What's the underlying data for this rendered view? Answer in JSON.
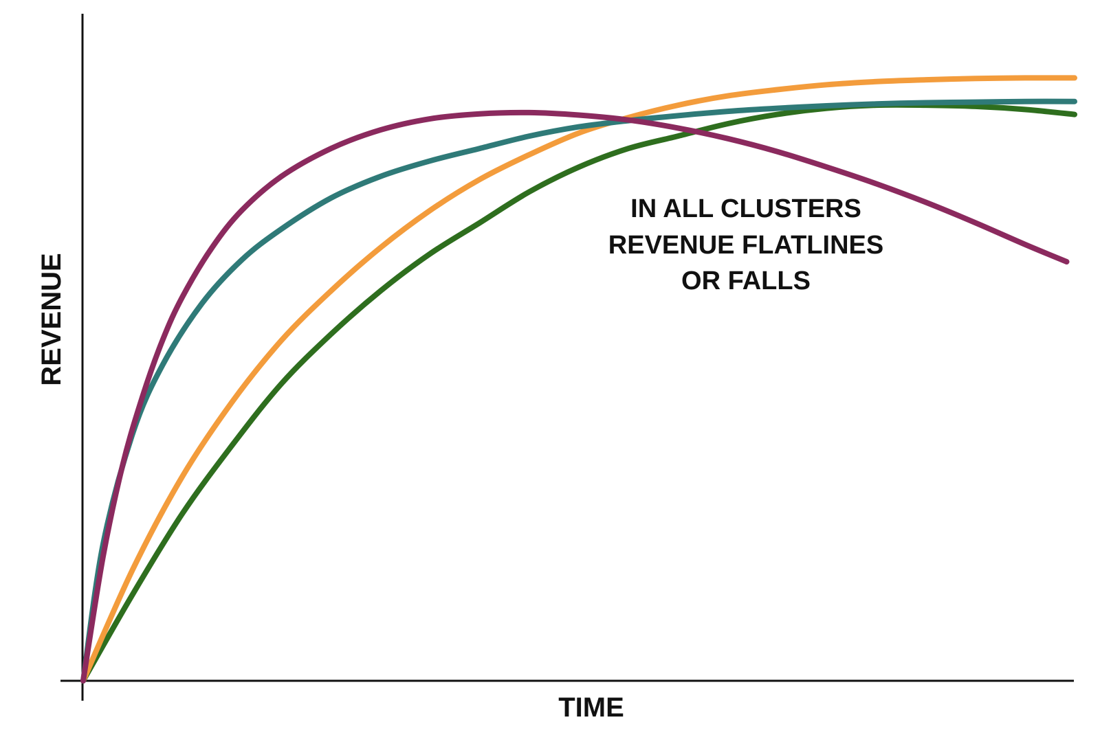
{
  "chart_data": {
    "type": "line",
    "title": "",
    "xlabel": "TIME",
    "ylabel": "REVENUE",
    "grid": false,
    "legend": "none",
    "annotation": [
      "IN ALL CLUSTERS",
      "REVENUE FLATLINES",
      "OR FALLS"
    ],
    "xlim": [
      0,
      100
    ],
    "ylim": [
      0,
      100
    ],
    "series": [
      {
        "color": "#2e6e1e",
        "x": [
          0,
          5,
          10,
          15,
          20,
          25,
          30,
          35,
          40,
          45,
          50,
          55,
          60,
          65,
          70,
          75,
          80,
          85,
          90,
          95,
          100
        ],
        "y": [
          0,
          14,
          27,
          38,
          48,
          56,
          63,
          69,
          74,
          79,
          83,
          86,
          88,
          90,
          91.5,
          92.5,
          93,
          93,
          92.8,
          92.3,
          91.5
        ]
      },
      {
        "color": "#f39c3c",
        "x": [
          0,
          5,
          10,
          15,
          20,
          25,
          30,
          35,
          40,
          45,
          50,
          55,
          60,
          65,
          70,
          75,
          80,
          85,
          90,
          95,
          100
        ],
        "y": [
          0,
          18,
          33,
          45,
          55,
          63,
          70,
          76,
          81,
          85,
          88.5,
          91,
          93,
          94.5,
          95.5,
          96.3,
          96.8,
          97.1,
          97.3,
          97.4,
          97.4
        ]
      },
      {
        "color": "#2f7a78",
        "x": [
          0,
          2,
          5,
          8,
          12,
          16,
          20,
          25,
          30,
          35,
          40,
          45,
          50,
          55,
          60,
          65,
          70,
          75,
          80,
          85,
          90,
          95,
          100
        ],
        "y": [
          0,
          22,
          40,
          51,
          61,
          68,
          73,
          78,
          81.5,
          84,
          86,
          88,
          89.5,
          90.5,
          91.3,
          92,
          92.5,
          92.9,
          93.2,
          93.4,
          93.5,
          93.6,
          93.6
        ]
      },
      {
        "color": "#8b2a5e",
        "x": [
          0,
          2,
          4,
          6,
          8,
          10,
          13,
          16,
          20,
          25,
          30,
          35,
          40,
          45,
          50,
          55,
          60,
          65,
          70,
          75,
          80,
          85,
          90,
          95,
          99.2
        ],
        "y": [
          0,
          20,
          35,
          46,
          55,
          62,
          70,
          76,
          81.5,
          86,
          89,
          90.8,
          91.6,
          91.8,
          91.4,
          90.6,
          89.3,
          87.6,
          85.5,
          83,
          80.3,
          77.3,
          74,
          70.5,
          67.7
        ]
      }
    ]
  }
}
